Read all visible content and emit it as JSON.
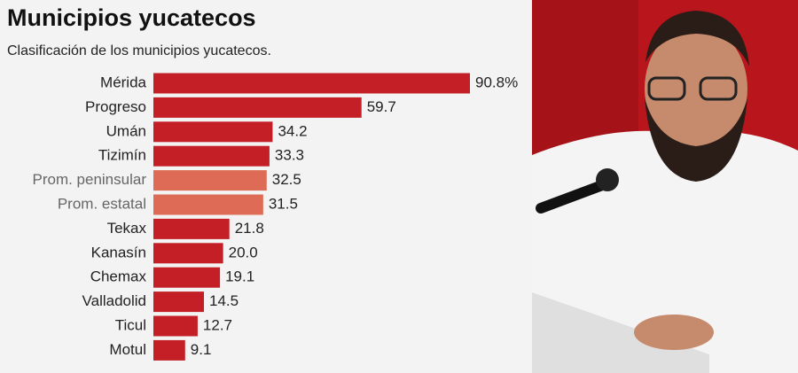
{
  "chart_data": {
    "type": "bar",
    "orientation": "horizontal",
    "title": "Municipios yucatecos",
    "subtitle": "Clasificación de los municipios yucatecos.",
    "categories": [
      "Mérida",
      "Progreso",
      "Umán",
      "Tizimín",
      "Prom. peninsular",
      "Prom. estatal",
      "Tekax",
      "Kanasín",
      "Chemax",
      "Valladolid",
      "Ticul",
      "Motul"
    ],
    "values": [
      90.8,
      59.7,
      34.2,
      33.3,
      32.5,
      31.5,
      21.8,
      20.0,
      19.1,
      14.5,
      12.7,
      9.1
    ],
    "value_labels": [
      "90.8%",
      "59.7",
      "34.2",
      "33.3",
      "32.5",
      "31.5",
      "21.8",
      "20.0",
      "19.1",
      "14.5",
      "12.7",
      "9.1"
    ],
    "colors": [
      "#c41f27",
      "#c41f27",
      "#c41f27",
      "#c41f27",
      "#de6b55",
      "#de6b55",
      "#c41f27",
      "#c41f27",
      "#c41f27",
      "#c41f27",
      "#c41f27",
      "#c41f27"
    ],
    "label_colors": [
      "#222222",
      "#222222",
      "#222222",
      "#222222",
      "#666666",
      "#666666",
      "#222222",
      "#222222",
      "#222222",
      "#222222",
      "#222222",
      "#222222"
    ]
  }
}
